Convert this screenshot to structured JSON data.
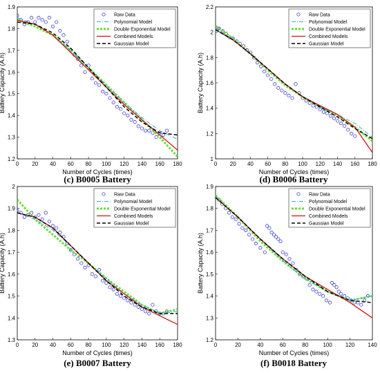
{
  "chart_data": [
    {
      "type": "scatter",
      "caption": "(c) B0005 Battery",
      "xlabel": "Number of Cycles (times)",
      "ylabel": "Battery Capacity (A.h)",
      "xlim": [
        0,
        180
      ],
      "ylim": [
        1.2,
        1.9
      ],
      "xticks": [
        "0",
        "20",
        "40",
        "60",
        "80",
        "100",
        "120",
        "140",
        "160",
        "180"
      ],
      "yticks": [
        "1.2",
        "1.3",
        "1.4",
        "1.5",
        "1.6",
        "1.7",
        "1.8",
        "1.9"
      ],
      "legend": [
        "Raw Data",
        "Polynomial Model",
        "Double Exponential Model",
        "Combined Models",
        "Gaussian Model"
      ],
      "legend_position": "top-right",
      "raw_x": [
        0,
        4,
        8,
        12,
        16,
        20,
        24,
        28,
        32,
        36,
        40,
        44,
        48,
        52,
        56,
        60,
        64,
        68,
        72,
        76,
        80,
        84,
        88,
        92,
        96,
        100,
        104,
        108,
        112,
        116,
        120,
        124,
        128,
        132,
        136,
        140,
        144,
        148,
        152,
        156,
        160,
        164,
        168
      ],
      "raw_y": [
        1.86,
        1.84,
        1.82,
        1.83,
        1.85,
        1.83,
        1.85,
        1.84,
        1.83,
        1.85,
        1.81,
        1.83,
        1.79,
        1.77,
        1.74,
        1.7,
        1.68,
        1.66,
        1.63,
        1.6,
        1.63,
        1.57,
        1.55,
        1.54,
        1.51,
        1.5,
        1.48,
        1.46,
        1.44,
        1.43,
        1.41,
        1.4,
        1.38,
        1.37,
        1.35,
        1.34,
        1.33,
        1.33,
        1.32,
        1.3,
        1.32,
        1.31,
        1.33
      ],
      "polynomial": {
        "x": [
          0,
          20,
          40,
          60,
          80,
          100,
          120,
          140,
          160,
          180
        ],
        "y": [
          1.85,
          1.82,
          1.77,
          1.7,
          1.62,
          1.54,
          1.46,
          1.39,
          1.33,
          1.29
        ]
      },
      "double_exponential": {
        "x": [
          0,
          20,
          40,
          60,
          80,
          100,
          120,
          140,
          160,
          180
        ],
        "y": [
          1.84,
          1.81,
          1.77,
          1.7,
          1.62,
          1.54,
          1.46,
          1.38,
          1.3,
          1.21
        ]
      },
      "combined": {
        "x": [
          0,
          20,
          40,
          60,
          80,
          100,
          120,
          140,
          160,
          180
        ],
        "y": [
          1.84,
          1.82,
          1.77,
          1.69,
          1.61,
          1.53,
          1.45,
          1.38,
          1.31,
          1.24
        ]
      },
      "gaussian": {
        "x": [
          0,
          20,
          40,
          60,
          80,
          100,
          120,
          140,
          160,
          180
        ],
        "y": [
          1.83,
          1.82,
          1.78,
          1.71,
          1.62,
          1.53,
          1.44,
          1.37,
          1.32,
          1.31
        ]
      }
    },
    {
      "type": "scatter",
      "caption": "(d) B0006 Battery",
      "xlabel": "Number of Cycles (times)",
      "ylabel": "Battery Capacity (A.h)",
      "xlim": [
        0,
        180
      ],
      "ylim": [
        1,
        2.2
      ],
      "xticks": [
        "0",
        "20",
        "40",
        "60",
        "80",
        "100",
        "120",
        "140",
        "160",
        "180"
      ],
      "yticks": [
        "1",
        "1.2",
        "1.4",
        "1.6",
        "1.8",
        "2",
        "2.2"
      ],
      "legend": [
        "Raw Data",
        "Polynomial Model",
        "Double Exponential Model",
        "Combined Models",
        "Gaussian Model"
      ],
      "legend_position": "top-right",
      "raw_x": [
        0,
        4,
        8,
        12,
        16,
        20,
        24,
        28,
        32,
        36,
        40,
        44,
        48,
        52,
        56,
        60,
        64,
        68,
        72,
        76,
        80,
        84,
        88,
        92,
        96,
        100,
        104,
        108,
        112,
        116,
        120,
        124,
        128,
        132,
        136,
        140,
        144,
        148,
        152,
        156,
        160
      ],
      "raw_y": [
        2.04,
        2.03,
        2.01,
        1.99,
        1.96,
        1.95,
        1.93,
        1.91,
        1.89,
        1.86,
        1.84,
        1.8,
        1.76,
        1.73,
        1.69,
        1.66,
        1.63,
        1.59,
        1.56,
        1.54,
        1.52,
        1.5,
        1.48,
        1.59,
        1.52,
        1.48,
        1.46,
        1.44,
        1.42,
        1.41,
        1.39,
        1.37,
        1.36,
        1.34,
        1.32,
        1.3,
        1.28,
        1.26,
        1.23,
        1.2,
        1.18
      ],
      "polynomial": {
        "x": [
          0,
          20,
          40,
          60,
          80,
          100,
          120,
          140,
          160,
          180
        ],
        "y": [
          2.03,
          1.94,
          1.83,
          1.71,
          1.59,
          1.49,
          1.41,
          1.35,
          1.28,
          1.17
        ]
      },
      "double_exponential": {
        "x": [
          0,
          20,
          40,
          60,
          80,
          100,
          120,
          140,
          160,
          180
        ],
        "y": [
          2.05,
          1.95,
          1.83,
          1.7,
          1.58,
          1.49,
          1.41,
          1.34,
          1.25,
          1.14
        ]
      },
      "combined": {
        "x": [
          0,
          20,
          40,
          60,
          80,
          100,
          120,
          140,
          160,
          180
        ],
        "y": [
          2.02,
          1.94,
          1.83,
          1.71,
          1.59,
          1.49,
          1.42,
          1.35,
          1.25,
          1.05
        ]
      },
      "gaussian": {
        "x": [
          0,
          20,
          40,
          60,
          80,
          100,
          120,
          140,
          160,
          180
        ],
        "y": [
          2.02,
          1.94,
          1.83,
          1.71,
          1.59,
          1.49,
          1.41,
          1.33,
          1.24,
          1.16
        ]
      }
    },
    {
      "type": "scatter",
      "caption": "(e) B0007 Battery",
      "xlabel": "Number of Cycles (times)",
      "ylabel": "Battery Capacity (A.h)",
      "xlim": [
        0,
        180
      ],
      "ylim": [
        1.3,
        2
      ],
      "xticks": [
        "0",
        "20",
        "40",
        "60",
        "80",
        "100",
        "120",
        "140",
        "160",
        "180"
      ],
      "yticks": [
        "1.3",
        "1.4",
        "1.5",
        "1.6",
        "1.7",
        "1.8",
        "1.9",
        "2"
      ],
      "legend": [
        "Raw Data",
        "Polynomial Model",
        "Double Exponential Model",
        "Combined Models",
        "Gaussian Model"
      ],
      "legend_position": "top-right",
      "raw_x": [
        0,
        4,
        8,
        12,
        16,
        20,
        24,
        28,
        32,
        36,
        40,
        44,
        48,
        52,
        56,
        60,
        64,
        68,
        72,
        76,
        80,
        84,
        88,
        92,
        96,
        100,
        104,
        108,
        112,
        116,
        120,
        124,
        128,
        132,
        136,
        140,
        144,
        148,
        152,
        156,
        160,
        164,
        168
      ],
      "raw_y": [
        1.89,
        1.88,
        1.86,
        1.87,
        1.88,
        1.86,
        1.87,
        1.85,
        1.88,
        1.84,
        1.82,
        1.81,
        1.79,
        1.77,
        1.74,
        1.71,
        1.69,
        1.67,
        1.65,
        1.63,
        1.64,
        1.6,
        1.59,
        1.62,
        1.57,
        1.56,
        1.54,
        1.53,
        1.51,
        1.5,
        1.49,
        1.48,
        1.47,
        1.46,
        1.45,
        1.44,
        1.43,
        1.42,
        1.46,
        1.43,
        1.42,
        1.42,
        1.43
      ],
      "polynomial": {
        "x": [
          0,
          20,
          40,
          60,
          80,
          100,
          120,
          140,
          160,
          180
        ],
        "y": [
          1.88,
          1.85,
          1.8,
          1.73,
          1.65,
          1.58,
          1.51,
          1.46,
          1.42,
          1.43
        ]
      },
      "double_exponential": {
        "x": [
          0,
          20,
          40,
          60,
          80,
          100,
          120,
          140,
          160,
          180
        ],
        "y": [
          1.94,
          1.85,
          1.78,
          1.71,
          1.65,
          1.58,
          1.52,
          1.46,
          1.42,
          1.44
        ]
      },
      "combined": {
        "x": [
          0,
          20,
          40,
          60,
          80,
          100,
          120,
          140,
          160,
          180
        ],
        "y": [
          1.88,
          1.86,
          1.81,
          1.73,
          1.65,
          1.57,
          1.51,
          1.45,
          1.41,
          1.37
        ]
      },
      "gaussian": {
        "x": [
          0,
          20,
          40,
          60,
          80,
          100,
          120,
          140,
          160,
          180
        ],
        "y": [
          1.88,
          1.86,
          1.81,
          1.73,
          1.65,
          1.57,
          1.5,
          1.45,
          1.42,
          1.42
        ]
      }
    },
    {
      "type": "scatter",
      "caption": "(f) B0018 Battery",
      "xlabel": "Number of Cycles (times)",
      "ylabel": "Battery Capacity (A.h)",
      "xlim": [
        0,
        140
      ],
      "ylim": [
        1.2,
        1.9
      ],
      "xticks": [
        "0",
        "20",
        "40",
        "60",
        "80",
        "100",
        "120",
        "140"
      ],
      "yticks": [
        "1.2",
        "1.3",
        "1.4",
        "1.5",
        "1.6",
        "1.7",
        "1.8",
        "1.9"
      ],
      "legend": [
        "Raw Data",
        "Polynomial Model",
        "Double Exponential Model",
        "Combined Models",
        "Gaussian Model"
      ],
      "legend_position": "top-right",
      "raw_x": [
        0,
        3,
        6,
        9,
        12,
        15,
        18,
        21,
        24,
        27,
        30,
        33,
        36,
        40,
        44,
        46,
        48,
        50,
        52,
        54,
        56,
        58,
        60,
        63,
        66,
        69,
        72,
        75,
        78,
        81,
        84,
        87,
        90,
        93,
        96,
        99,
        102,
        104,
        106,
        108,
        110,
        112,
        115,
        118,
        121,
        124,
        127,
        130,
        133,
        136
      ],
      "raw_y": [
        1.85,
        1.84,
        1.82,
        1.8,
        1.78,
        1.76,
        1.75,
        1.73,
        1.71,
        1.7,
        1.68,
        1.66,
        1.64,
        1.62,
        1.6,
        1.72,
        1.71,
        1.69,
        1.68,
        1.67,
        1.66,
        1.65,
        1.6,
        1.59,
        1.57,
        1.55,
        1.52,
        1.5,
        1.49,
        1.48,
        1.45,
        1.43,
        1.42,
        1.41,
        1.4,
        1.38,
        1.37,
        1.46,
        1.45,
        1.44,
        1.42,
        1.41,
        1.4,
        1.39,
        1.38,
        1.37,
        1.37,
        1.36,
        1.38,
        1.4
      ],
      "polynomial": {
        "x": [
          0,
          20,
          40,
          60,
          80,
          100,
          120,
          140
        ],
        "y": [
          1.85,
          1.76,
          1.66,
          1.56,
          1.48,
          1.42,
          1.38,
          1.4
        ]
      },
      "double_exponential": {
        "x": [
          0,
          20,
          40,
          60,
          80,
          100,
          120,
          140
        ],
        "y": [
          1.86,
          1.76,
          1.65,
          1.56,
          1.48,
          1.42,
          1.38,
          1.4
        ]
      },
      "combined": {
        "x": [
          0,
          20,
          40,
          60,
          80,
          100,
          120,
          140
        ],
        "y": [
          1.85,
          1.76,
          1.66,
          1.57,
          1.49,
          1.43,
          1.37,
          1.3
        ]
      },
      "gaussian": {
        "x": [
          0,
          20,
          40,
          60,
          80,
          100,
          120,
          140
        ],
        "y": [
          1.85,
          1.76,
          1.66,
          1.57,
          1.49,
          1.42,
          1.38,
          1.37
        ]
      }
    }
  ],
  "colors": {
    "raw": "#2222cc",
    "polynomial": "#33aadd",
    "double_exponential": "#66dd33",
    "combined": "#cc1111",
    "gaussian": "#000000"
  }
}
